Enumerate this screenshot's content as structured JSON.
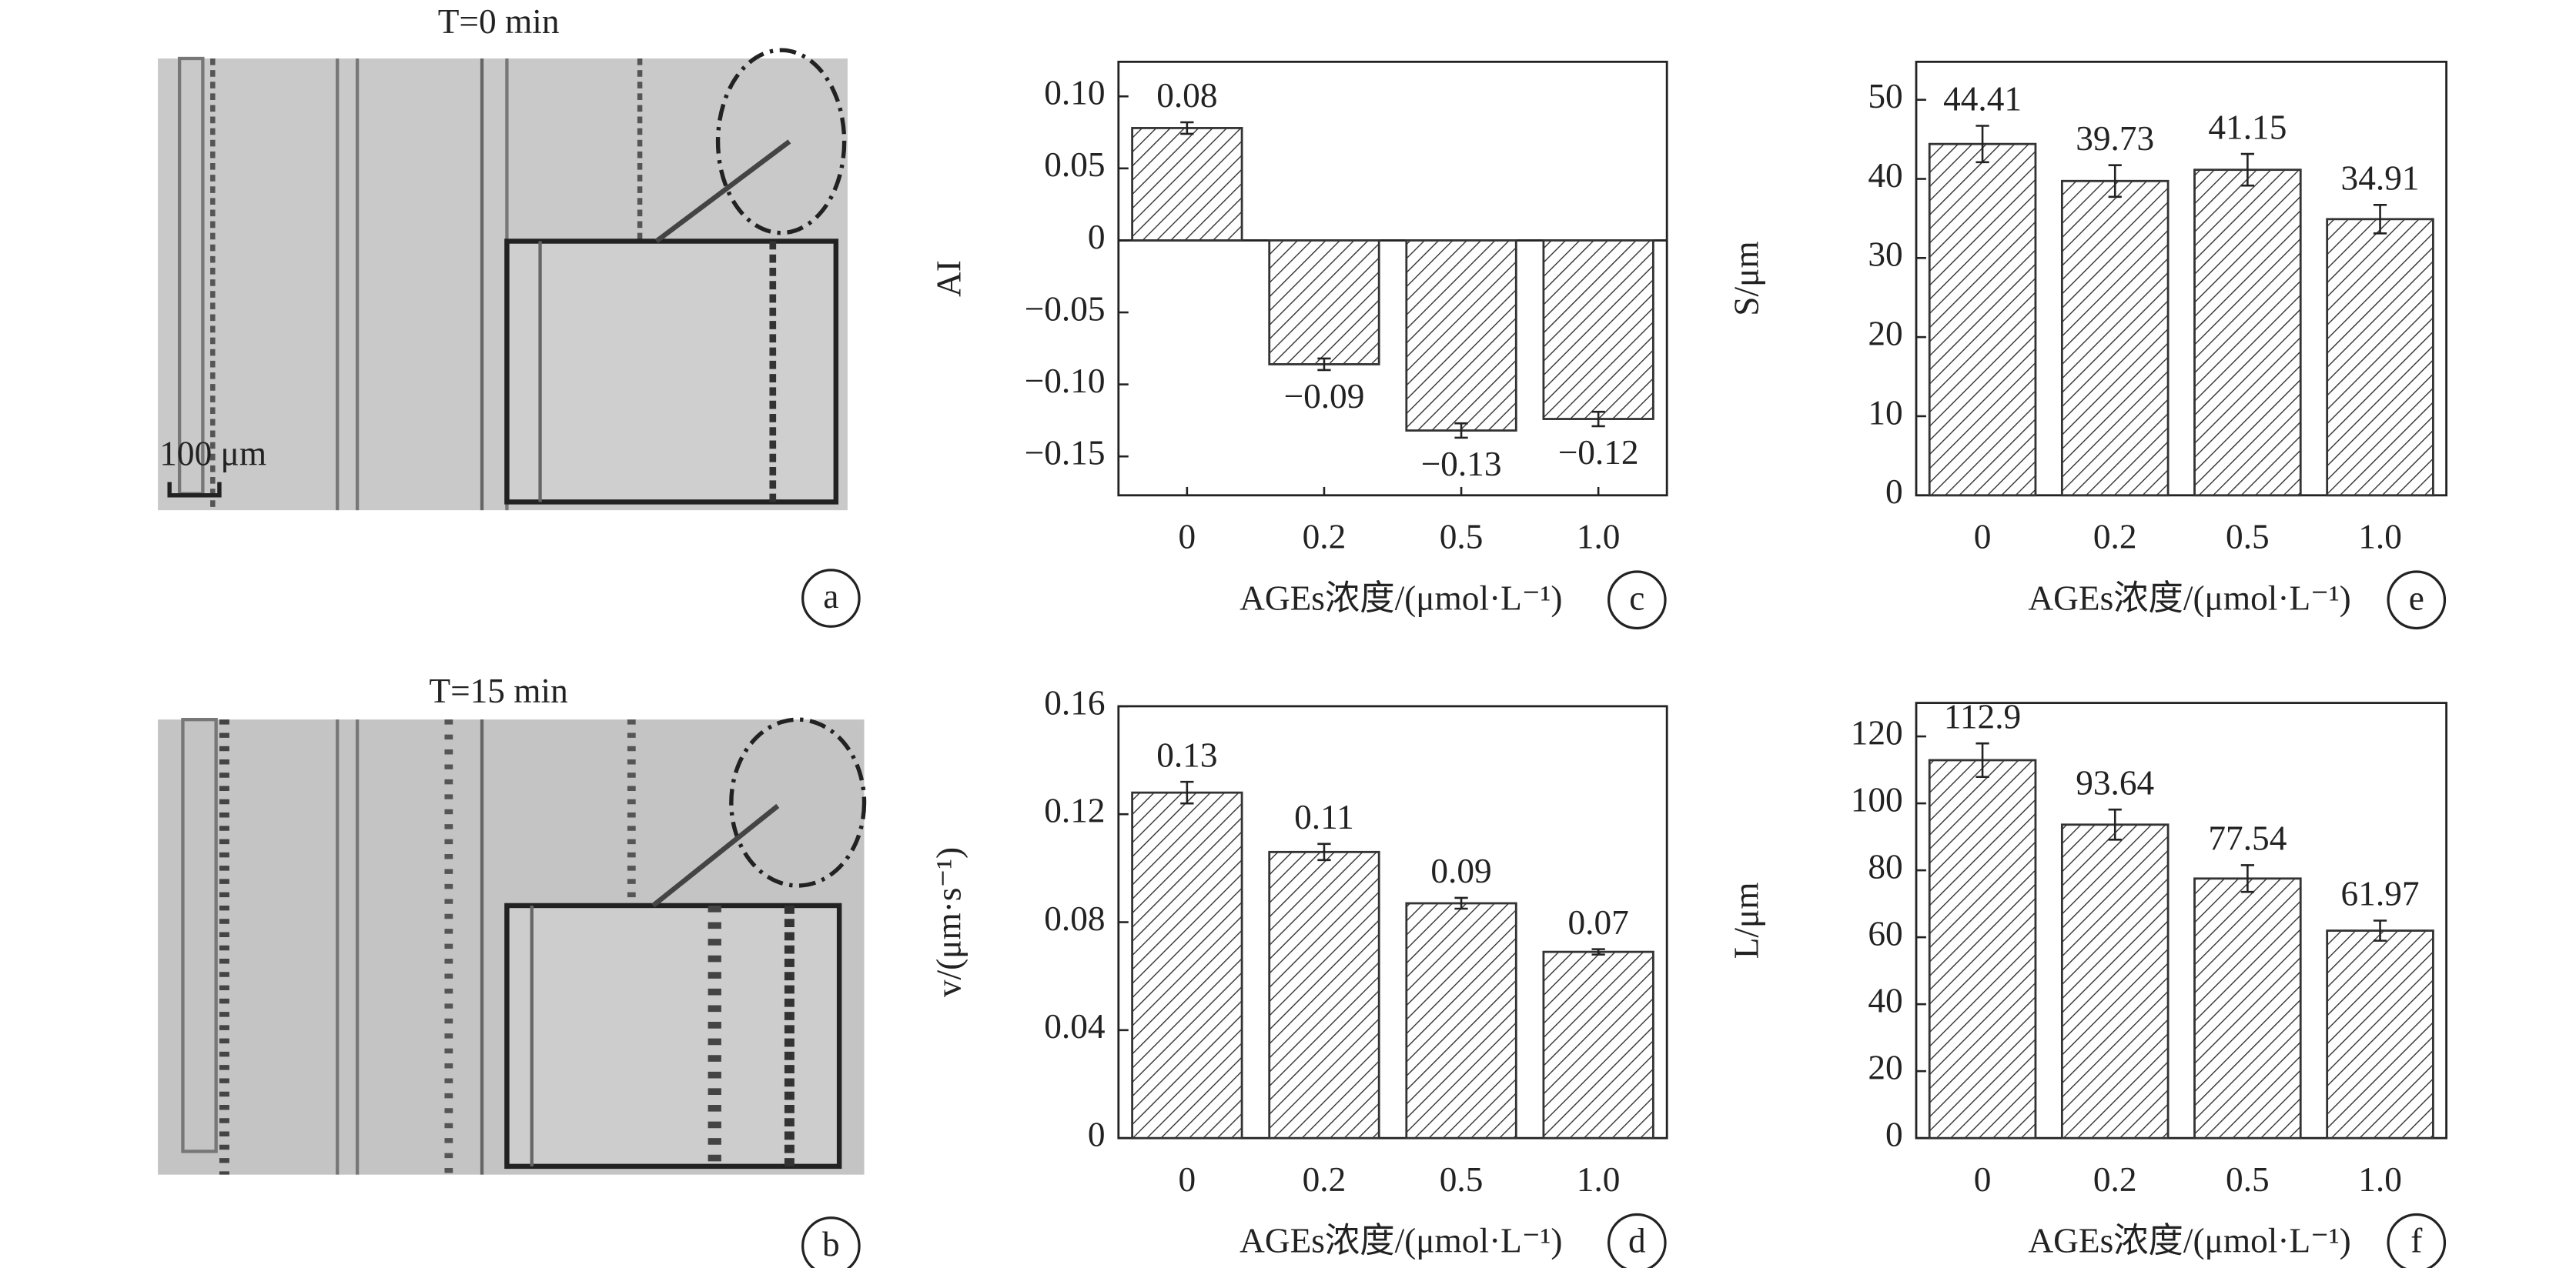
{
  "images": [
    {
      "title": "T=0 min",
      "scale_bar": "100 μm",
      "label": "a"
    },
    {
      "title": "T=15 min",
      "label": "b"
    }
  ],
  "chart_data": [
    {
      "type": "bar",
      "panel_label": "c",
      "y_label": "AI",
      "x_label": "AGEs浓度/(μmol·L⁻¹)",
      "categories": [
        "0",
        "0.2",
        "0.5",
        "1.0"
      ],
      "values": [
        0.078,
        -0.086,
        -0.132,
        -0.124
      ],
      "value_labels": [
        "0.08",
        "−0.09",
        "−0.13",
        "−0.12"
      ],
      "errors": [
        0.004,
        0.004,
        0.005,
        0.005
      ],
      "ylim": [
        -0.177,
        0.124
      ],
      "yticks": [
        {
          "value": 0.1,
          "label": "0.10"
        },
        0.05,
        0,
        {
          "value": -0.05,
          "label": "−0.05"
        },
        {
          "value": -0.1,
          "label": "−0.10"
        },
        {
          "value": -0.15,
          "label": "−0.15"
        }
      ],
      "color": "#333333"
    },
    {
      "type": "bar",
      "panel_label": "d",
      "y_label": "v/(μm·s⁻¹)",
      "x_label": "AGEs浓度/(μmol·L⁻¹)",
      "categories": [
        "0",
        "0.2",
        "0.5",
        "1.0"
      ],
      "values": [
        0.128,
        0.106,
        0.087,
        0.069
      ],
      "value_labels": [
        "0.13",
        "0.11",
        "0.09",
        "0.07"
      ],
      "errors": [
        0.004,
        0.003,
        0.002,
        0.001
      ],
      "ylim": [
        0,
        0.16
      ],
      "yticks": [
        0,
        0.04,
        0.08,
        0.12,
        0.16
      ],
      "color": "#333333"
    },
    {
      "type": "bar",
      "panel_label": "e",
      "y_label": "S/μm",
      "x_label": "AGEs浓度/(μmol·L⁻¹)",
      "categories": [
        "0",
        "0.2",
        "0.5",
        "1.0"
      ],
      "values": [
        44.41,
        39.73,
        41.15,
        34.91
      ],
      "errors": [
        2.3,
        2.0,
        2.0,
        1.8
      ],
      "ylim": [
        0,
        54.8
      ],
      "yticks": [
        0,
        10,
        20,
        30,
        40,
        50
      ],
      "color": "#333333"
    },
    {
      "type": "bar",
      "panel_label": "f",
      "y_label": "L/μm",
      "x_label": "AGEs浓度/(μmol·L⁻¹)",
      "categories": [
        "0",
        "0.2",
        "0.5",
        "1.0"
      ],
      "values": [
        112.9,
        93.64,
        77.54,
        61.97
      ],
      "errors": [
        5,
        4.5,
        4,
        3
      ],
      "ylim": [
        0,
        130
      ],
      "yticks": [
        0,
        20,
        40,
        60,
        80,
        100,
        120
      ],
      "color": "#333333"
    }
  ]
}
